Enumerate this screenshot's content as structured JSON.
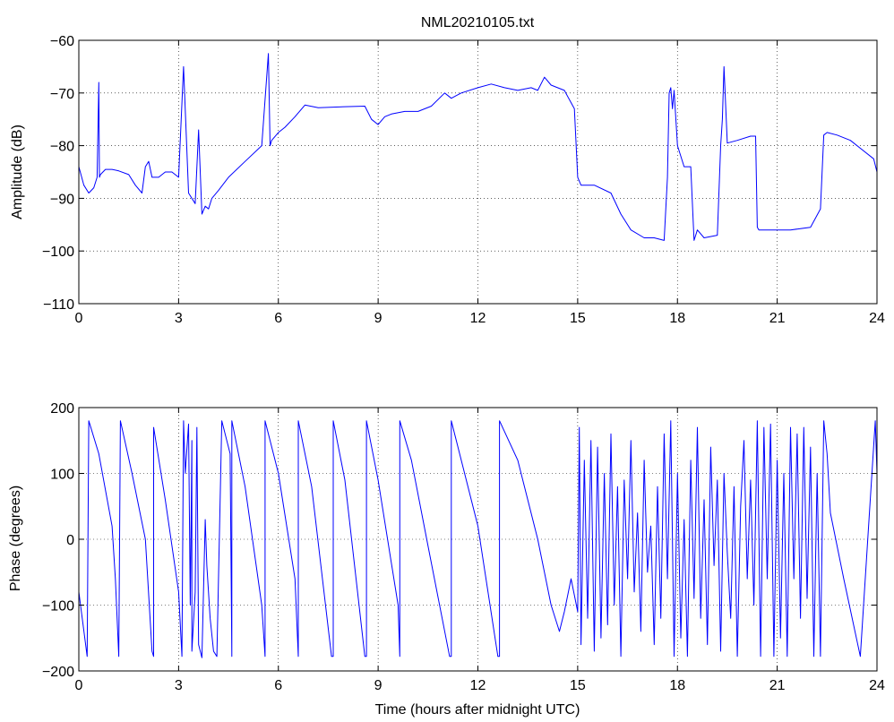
{
  "figure": {
    "title": "NML20210105.txt"
  },
  "chart_data": [
    {
      "type": "line",
      "title": "NML20210105.txt",
      "xlabel": "",
      "ylabel": "Amplitude (dB)",
      "xlim": [
        0,
        24
      ],
      "ylim": [
        -110,
        -60
      ],
      "xticks": [
        0,
        3,
        6,
        9,
        12,
        15,
        18,
        21,
        24
      ],
      "xtick_labels": [
        "0",
        "3",
        "6",
        "9",
        "12",
        "15",
        "18",
        "21",
        "24"
      ],
      "yticks": [
        -110,
        -100,
        -90,
        -80,
        -70,
        -60
      ],
      "ytick_labels": [
        "−110",
        "−100",
        "−90",
        "−80",
        "−70",
        "−60"
      ],
      "grid": true,
      "color": "#0000ff",
      "series": [
        {
          "x": [
            0,
            0.15,
            0.3,
            0.45,
            0.55,
            0.6,
            0.62,
            0.65,
            0.8,
            1.0,
            1.2,
            1.5,
            1.7,
            1.9,
            2.0,
            2.1,
            2.2,
            2.4,
            2.6,
            2.8,
            3.0,
            3.15,
            3.3,
            3.5,
            3.6,
            3.7,
            3.8,
            3.9,
            4.0,
            4.2,
            4.5,
            5.0,
            5.5,
            5.7,
            5.75,
            5.8,
            6.0,
            6.2,
            6.5,
            6.8,
            7.2,
            8.0,
            8.6,
            8.8,
            9.0,
            9.2,
            9.4,
            9.8,
            10.2,
            10.6,
            11.0,
            11.2,
            11.5,
            12.0,
            12.4,
            12.8,
            13.2,
            13.6,
            13.8,
            14.0,
            14.2,
            14.6,
            14.9,
            15.0,
            15.1,
            15.5,
            16.0,
            16.3,
            16.6,
            17.0,
            17.3,
            17.6,
            17.7,
            17.75,
            17.8,
            17.85,
            17.9,
            18.0,
            18.2,
            18.4,
            18.5,
            18.6,
            18.8,
            19.2,
            19.3,
            19.35,
            19.4,
            19.5,
            19.8,
            20.2,
            20.35,
            20.4,
            20.45,
            20.8,
            21.4,
            22.0,
            22.3,
            22.4,
            22.5,
            22.8,
            23.2,
            23.5,
            23.9,
            24.0
          ],
          "values": [
            -84,
            -87.5,
            -89,
            -88,
            -86,
            -68,
            -86,
            -85.5,
            -84.5,
            -84.5,
            -84.8,
            -85.5,
            -87.5,
            -89,
            -84,
            -83,
            -86,
            -86,
            -85,
            -85,
            -86,
            -65,
            -89,
            -91,
            -77,
            -93,
            -91.5,
            -92,
            -90,
            -88.5,
            -86,
            -83,
            -80,
            -62.5,
            -80,
            -79,
            -77.5,
            -76.5,
            -74.5,
            -72.3,
            -72.8,
            -72.6,
            -72.5,
            -75,
            -76,
            -74.5,
            -74,
            -73.5,
            -73.5,
            -72.5,
            -70,
            -71,
            -70,
            -69,
            -68.3,
            -69,
            -69.5,
            -69,
            -69.5,
            -67,
            -68.5,
            -69.5,
            -73,
            -86,
            -87.5,
            -87.5,
            -89,
            -93,
            -96,
            -97.5,
            -97.5,
            -98,
            -86,
            -70,
            -69,
            -73,
            -69.5,
            -80,
            -84,
            -84,
            -98,
            -96,
            -97.5,
            -97,
            -80,
            -75,
            -65,
            -79.5,
            -79,
            -78.2,
            -78.2,
            -95.5,
            -96,
            -96,
            -96,
            -95.5,
            -92,
            -78,
            -77.5,
            -78,
            -79,
            -80.5,
            -82.5,
            -85
          ]
        }
      ]
    },
    {
      "type": "line",
      "title": "",
      "xlabel": "Time (hours after midnight UTC)",
      "ylabel": "Phase (degrees)",
      "xlim": [
        0,
        24
      ],
      "ylim": [
        -200,
        200
      ],
      "xticks": [
        0,
        3,
        6,
        9,
        12,
        15,
        18,
        21,
        24
      ],
      "xtick_labels": [
        "0",
        "3",
        "6",
        "9",
        "12",
        "15",
        "18",
        "21",
        "24"
      ],
      "yticks": [
        -200,
        -100,
        0,
        100,
        200
      ],
      "ytick_labels": [
        "−200",
        "−100",
        "0",
        "100",
        "200"
      ],
      "grid": true,
      "color": "#0000ff",
      "series": [
        {
          "x": [
            0,
            0.25,
            0.3,
            0.3,
            0.6,
            1.0,
            1.1,
            1.2,
            1.25,
            1.25,
            1.6,
            2.0,
            2.2,
            2.25,
            2.25,
            2.6,
            3.0,
            3.1,
            3.15,
            3.2,
            3.3,
            3.35,
            3.4,
            3.4,
            3.5,
            3.55,
            3.6,
            3.7,
            3.8,
            3.85,
            3.95,
            4.05,
            4.15,
            4.3,
            4.55,
            4.6,
            4.6,
            5.0,
            5.5,
            5.6,
            5.6,
            6.0,
            6.5,
            6.6,
            6.6,
            7.0,
            7.6,
            7.65,
            7.65,
            8.0,
            8.6,
            8.65,
            8.65,
            9.0,
            9.6,
            9.65,
            9.65,
            10.0,
            10.5,
            11.15,
            11.2,
            11.2,
            12.0,
            12.6,
            12.65,
            12.65,
            13.2,
            13.8,
            14.2,
            14.45,
            14.6,
            14.8,
            15.0,
            15.05,
            15.1,
            15.2,
            15.3,
            15.4,
            15.5,
            15.6,
            15.7,
            15.8,
            15.9,
            16.0,
            16.1,
            16.2,
            16.3,
            16.4,
            16.5,
            16.6,
            16.7,
            16.8,
            16.9,
            17.0,
            17.1,
            17.2,
            17.3,
            17.4,
            17.5,
            17.6,
            17.7,
            17.8,
            17.9,
            18.0,
            18.1,
            18.2,
            18.3,
            18.4,
            18.5,
            18.6,
            18.7,
            18.8,
            18.9,
            19.0,
            19.1,
            19.2,
            19.3,
            19.4,
            19.5,
            19.6,
            19.7,
            19.8,
            19.9,
            20.0,
            20.1,
            20.2,
            20.3,
            20.4,
            20.5,
            20.6,
            20.7,
            20.8,
            20.9,
            21.0,
            21.1,
            21.2,
            21.3,
            21.4,
            21.5,
            21.6,
            21.7,
            21.8,
            21.9,
            22.0,
            22.1,
            22.2,
            22.3,
            22.4,
            22.5,
            22.6,
            23.0,
            23.5,
            23.95,
            24.0
          ],
          "values": [
            -80,
            -178,
            180,
            180,
            130,
            20,
            -60,
            -178,
            180,
            180,
            100,
            0,
            -170,
            -178,
            170,
            60,
            -80,
            -178,
            180,
            100,
            175,
            -100,
            150,
            -170,
            -80,
            170,
            -160,
            -180,
            30,
            -40,
            -120,
            -170,
            -178,
            180,
            130,
            -178,
            180,
            80,
            -100,
            -178,
            180,
            100,
            -60,
            -178,
            180,
            80,
            -178,
            -178,
            180,
            90,
            -178,
            -178,
            180,
            90,
            -100,
            -178,
            180,
            120,
            -10,
            -178,
            -178,
            180,
            20,
            -178,
            -178,
            180,
            120,
            0,
            -100,
            -140,
            -110,
            -60,
            -110,
            170,
            -160,
            120,
            -120,
            150,
            -170,
            140,
            -150,
            100,
            -130,
            160,
            -100,
            80,
            -178,
            90,
            -60,
            150,
            -80,
            40,
            -140,
            120,
            -50,
            20,
            -160,
            80,
            -120,
            160,
            -60,
            180,
            -178,
            100,
            -150,
            30,
            -178,
            120,
            -90,
            170,
            -120,
            60,
            -160,
            140,
            -40,
            90,
            -170,
            100,
            -20,
            -120,
            80,
            -178,
            50,
            150,
            -60,
            90,
            -100,
            180,
            -178,
            170,
            -60,
            175,
            -178,
            120,
            -150,
            100,
            -178,
            170,
            -60,
            160,
            -120,
            170,
            -90,
            140,
            -178,
            100,
            -178,
            180,
            130,
            40,
            -60,
            -178,
            180,
            100
          ]
        }
      ]
    }
  ]
}
